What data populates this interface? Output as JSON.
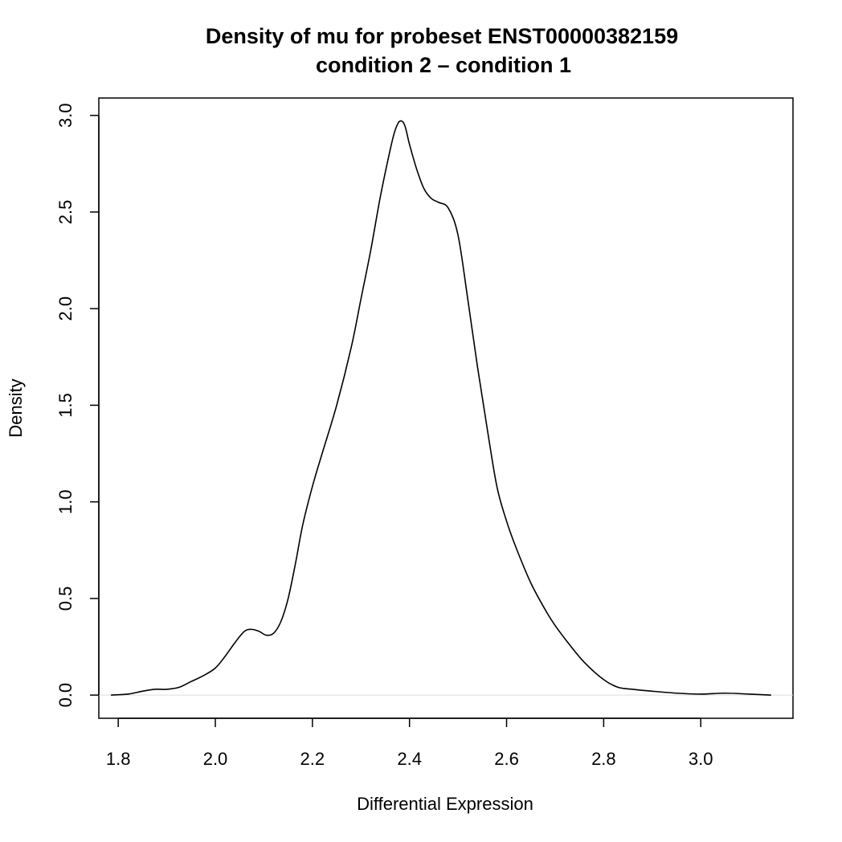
{
  "chart_data": {
    "type": "line",
    "title_line1": "Density of mu for probeset ENST00000382159",
    "title_line2": "condition  2  – condition 1",
    "xlabel": "Differential Expression",
    "ylabel": "Density",
    "xlim": [
      1.76,
      3.19
    ],
    "ylim": [
      -0.12,
      3.09
    ],
    "x_ticks": [
      1.8,
      2.0,
      2.2,
      2.4,
      2.6,
      2.8,
      3.0
    ],
    "x_tick_labels": [
      "1.8",
      "2.0",
      "2.2",
      "2.4",
      "2.6",
      "2.8",
      "3.0"
    ],
    "y_ticks": [
      0.0,
      0.5,
      1.0,
      1.5,
      2.0,
      2.5,
      3.0
    ],
    "y_tick_labels": [
      "0.0",
      "0.5",
      "1.0",
      "1.5",
      "2.0",
      "2.5",
      "3.0"
    ],
    "grid": false,
    "zero_line": true,
    "series": [
      {
        "x": [
          1.785,
          1.82,
          1.85,
          1.875,
          1.9,
          1.925,
          1.95,
          1.975,
          2.0,
          2.02,
          2.04,
          2.06,
          2.075,
          2.09,
          2.105,
          2.12,
          2.135,
          2.15,
          2.165,
          2.18,
          2.2,
          2.22,
          2.25,
          2.28,
          2.3,
          2.32,
          2.34,
          2.36,
          2.37,
          2.38,
          2.39,
          2.4,
          2.415,
          2.43,
          2.445,
          2.46,
          2.48,
          2.5,
          2.52,
          2.54,
          2.56,
          2.58,
          2.6,
          2.62,
          2.65,
          2.68,
          2.7,
          2.73,
          2.76,
          2.8,
          2.83,
          2.86,
          2.9,
          2.95,
          3.0,
          3.05,
          3.1,
          3.145
        ],
        "y": [
          0.0,
          0.005,
          0.02,
          0.03,
          0.03,
          0.04,
          0.07,
          0.1,
          0.14,
          0.2,
          0.27,
          0.33,
          0.34,
          0.33,
          0.31,
          0.32,
          0.38,
          0.5,
          0.68,
          0.88,
          1.08,
          1.25,
          1.5,
          1.8,
          2.05,
          2.3,
          2.58,
          2.82,
          2.92,
          2.97,
          2.95,
          2.85,
          2.72,
          2.62,
          2.57,
          2.55,
          2.52,
          2.38,
          2.05,
          1.7,
          1.38,
          1.08,
          0.9,
          0.76,
          0.58,
          0.44,
          0.36,
          0.26,
          0.17,
          0.08,
          0.04,
          0.03,
          0.02,
          0.01,
          0.005,
          0.01,
          0.005,
          0.0
        ]
      }
    ]
  }
}
